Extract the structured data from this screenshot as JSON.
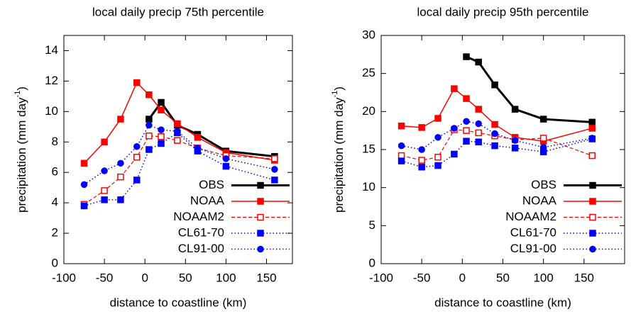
{
  "chart_data": [
    {
      "type": "line",
      "title": "local daily precip 75th percentile",
      "xlabel": "distance to coastline (km)",
      "ylabel": {
        "text": "precipitation (mm day",
        "superscript": "-1",
        "suffix": ")"
      },
      "x": [
        -75,
        -50,
        -30,
        -10,
        5,
        20,
        40,
        65,
        100,
        160
      ],
      "xlim": [
        -100,
        182
      ],
      "xticks": [
        -100,
        -50,
        0,
        50,
        100,
        150
      ],
      "ylim": [
        0,
        15
      ],
      "yticks": [
        0,
        2,
        4,
        6,
        8,
        10,
        12,
        14
      ],
      "legend": "lower right",
      "series": [
        {
          "name": "OBS",
          "color": "#000000",
          "dash": "solid",
          "width": 3,
          "marker": "square",
          "filled": true,
          "values": [
            null,
            null,
            null,
            null,
            9.5,
            10.6,
            9.1,
            8.5,
            7.4,
            7.05
          ]
        },
        {
          "name": "NOAA",
          "color": "#ff0000",
          "dash": "solid",
          "width": 1.5,
          "marker": "square",
          "filled": true,
          "values": [
            6.6,
            8.0,
            9.5,
            11.9,
            11.1,
            10.1,
            9.2,
            8.3,
            7.3,
            6.8
          ]
        },
        {
          "name": "NOAAM2",
          "color": "#ff0000",
          "dash": "dashed",
          "width": 1.2,
          "marker": "square",
          "filled": false,
          "values": [
            3.9,
            4.8,
            5.7,
            7.0,
            8.4,
            8.35,
            8.1,
            7.6,
            7.1,
            6.9
          ]
        },
        {
          "name": "CL61-70",
          "color": "#0000ff",
          "dash": "dotted",
          "width": 1.5,
          "marker": "square",
          "filled": true,
          "values": [
            3.8,
            4.2,
            4.2,
            5.5,
            7.5,
            7.9,
            8.6,
            7.4,
            6.4,
            5.5
          ]
        },
        {
          "name": "CL91-00",
          "color": "#0000ff",
          "dash": "dotted",
          "width": 1.5,
          "marker": "circle",
          "filled": true,
          "values": [
            5.2,
            6.1,
            6.6,
            7.7,
            9.1,
            8.8,
            8.7,
            7.6,
            6.9,
            6.2
          ]
        }
      ]
    },
    {
      "type": "line",
      "title": "local daily precip 95th percentile",
      "xlabel": "distance to coastline (km)",
      "ylabel": {
        "text": "precipitation (mm day",
        "superscript": "-1",
        "suffix": ")"
      },
      "x": [
        -75,
        -50,
        -30,
        -10,
        5,
        20,
        40,
        65,
        100,
        160
      ],
      "xlim": [
        -100,
        200
      ],
      "xticks": [
        -100,
        -50,
        0,
        50,
        100,
        150
      ],
      "ylim": [
        0,
        30
      ],
      "yticks": [
        0,
        5,
        10,
        15,
        20,
        25,
        30
      ],
      "legend": "lower right",
      "series": [
        {
          "name": "OBS",
          "color": "#000000",
          "dash": "solid",
          "width": 3,
          "marker": "square",
          "filled": true,
          "values": [
            null,
            null,
            null,
            null,
            27.2,
            26.5,
            23.5,
            20.3,
            19.0,
            18.6
          ]
        },
        {
          "name": "NOAA",
          "color": "#ff0000",
          "dash": "solid",
          "width": 1.5,
          "marker": "square",
          "filled": true,
          "values": [
            18.1,
            17.9,
            19.1,
            23.0,
            21.7,
            20.3,
            18.3,
            16.6,
            16.1,
            17.8
          ]
        },
        {
          "name": "NOAAM2",
          "color": "#ff0000",
          "dash": "dashed",
          "width": 1.2,
          "marker": "square",
          "filled": false,
          "values": [
            14.2,
            13.6,
            14.0,
            17.6,
            17.5,
            17.2,
            16.8,
            16.3,
            16.5,
            14.2
          ]
        },
        {
          "name": "CL61-70",
          "color": "#0000ff",
          "dash": "dotted",
          "width": 1.5,
          "marker": "square",
          "filled": true,
          "values": [
            13.5,
            12.7,
            12.9,
            14.4,
            16.1,
            16.0,
            15.5,
            15.2,
            14.7,
            16.4
          ]
        },
        {
          "name": "CL91-00",
          "color": "#0000ff",
          "dash": "dotted",
          "width": 1.5,
          "marker": "circle",
          "filled": true,
          "values": [
            15.5,
            15.0,
            16.6,
            17.8,
            18.7,
            18.4,
            17.1,
            16.2,
            15.3,
            16.5
          ]
        }
      ]
    }
  ]
}
